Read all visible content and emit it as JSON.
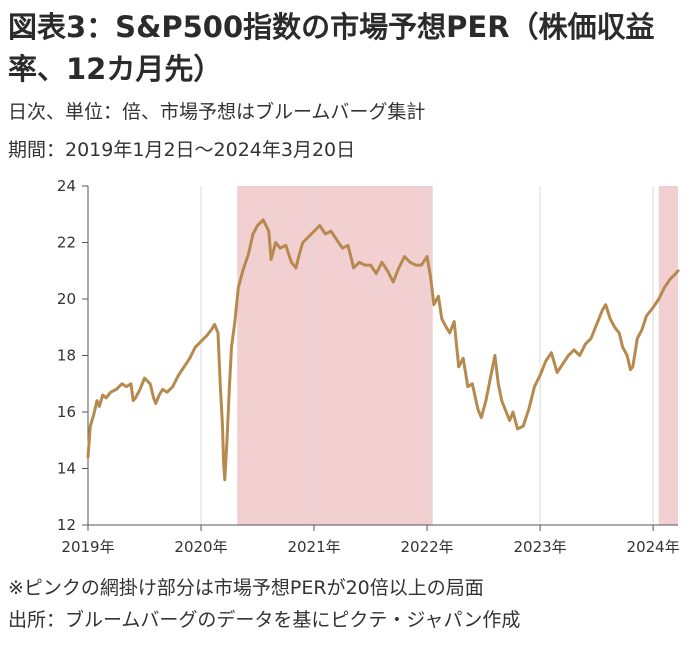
{
  "header": {
    "title": "図表3：S&P500指数の市場予想PER（株価収益率、12カ月先）",
    "subtitle1": "日次、単位：倍、市場予想はブルームバーグ集計",
    "subtitle2": "期間：2019年1月2日～2024年3月20日"
  },
  "footer": {
    "note": "※ピンクの網掛け部分は市場予想PERが20倍以上の局面",
    "source": "出所：ブルームバーグのデータを基にピクテ・ジャパン作成"
  },
  "colors": {
    "line": "#b68a4e",
    "shade": "#f2d0d2",
    "grid": "#d9d9d9"
  },
  "chart_data": {
    "type": "line",
    "title": "",
    "xlabel": "",
    "ylabel": "",
    "ylim": [
      12,
      24
    ],
    "yticks": [
      "12",
      "14",
      "16",
      "18",
      "20",
      "22",
      "24"
    ],
    "xticks": [
      {
        "x": 2019.0,
        "label": "2019年"
      },
      {
        "x": 2020.0,
        "label": "2020年"
      },
      {
        "x": 2021.0,
        "label": "2021年"
      },
      {
        "x": 2022.0,
        "label": "2022年"
      },
      {
        "x": 2023.0,
        "label": "2023年"
      },
      {
        "x": 2024.0,
        "label": "2024年"
      }
    ],
    "xlim": [
      2019.0,
      2024.22
    ],
    "grid": "vertical",
    "shaded_ranges": [
      [
        2020.32,
        2022.05
      ],
      [
        2024.05,
        2024.22
      ]
    ],
    "series": [
      {
        "x": [
          2019.0,
          2019.02,
          2019.05,
          2019.08,
          2019.1,
          2019.13,
          2019.16,
          2019.2,
          2019.25,
          2019.3,
          2019.34,
          2019.38,
          2019.4,
          2019.42,
          2019.46,
          2019.5,
          2019.55,
          2019.58,
          2019.6,
          2019.63,
          2019.66,
          2019.7,
          2019.75,
          2019.8,
          2019.85,
          2019.9,
          2019.95,
          2020.0,
          2020.05,
          2020.09,
          2020.12,
          2020.15,
          2020.17,
          2020.19,
          2020.2,
          2020.21,
          2020.23,
          2020.25,
          2020.27,
          2020.3,
          2020.33,
          2020.37,
          2020.42,
          2020.46,
          2020.5,
          2020.55,
          2020.6,
          2020.62,
          2020.64,
          2020.66,
          2020.7,
          2020.75,
          2020.8,
          2020.84,
          2020.87,
          2020.9,
          2020.95,
          2021.0,
          2021.05,
          2021.1,
          2021.15,
          2021.2,
          2021.25,
          2021.3,
          2021.35,
          2021.4,
          2021.45,
          2021.5,
          2021.55,
          2021.6,
          2021.65,
          2021.7,
          2021.75,
          2021.8,
          2021.85,
          2021.9,
          2021.95,
          2022.0,
          2022.03,
          2022.06,
          2022.1,
          2022.13,
          2022.17,
          2022.2,
          2022.24,
          2022.28,
          2022.32,
          2022.36,
          2022.4,
          2022.45,
          2022.48,
          2022.52,
          2022.57,
          2022.6,
          2022.63,
          2022.66,
          2022.7,
          2022.73,
          2022.76,
          2022.8,
          2022.85,
          2022.9,
          2022.95,
          2023.0,
          2023.05,
          2023.1,
          2023.15,
          2023.2,
          2023.25,
          2023.3,
          2023.35,
          2023.4,
          2023.45,
          2023.5,
          2023.55,
          2023.58,
          2023.62,
          2023.66,
          2023.7,
          2023.73,
          2023.77,
          2023.8,
          2023.82,
          2023.86,
          2023.9,
          2023.94,
          2024.0,
          2024.05,
          2024.1,
          2024.15,
          2024.2,
          2024.22
        ],
        "y": [
          14.4,
          15.5,
          15.9,
          16.4,
          16.2,
          16.6,
          16.5,
          16.7,
          16.8,
          17.0,
          16.9,
          17.0,
          16.4,
          16.5,
          16.8,
          17.2,
          17.0,
          16.5,
          16.3,
          16.6,
          16.8,
          16.7,
          16.9,
          17.3,
          17.6,
          17.9,
          18.3,
          18.5,
          18.7,
          18.9,
          19.1,
          18.8,
          17.0,
          15.5,
          14.2,
          13.6,
          15.0,
          16.8,
          18.3,
          19.2,
          20.4,
          21.0,
          21.6,
          22.3,
          22.6,
          22.8,
          22.4,
          21.4,
          21.7,
          22.0,
          21.8,
          21.9,
          21.3,
          21.1,
          21.6,
          22.0,
          22.2,
          22.4,
          22.6,
          22.3,
          22.4,
          22.1,
          21.8,
          21.9,
          21.1,
          21.3,
          21.2,
          21.2,
          20.9,
          21.3,
          21.0,
          20.6,
          21.1,
          21.5,
          21.3,
          21.2,
          21.2,
          21.5,
          20.8,
          19.8,
          20.1,
          19.3,
          19.0,
          18.8,
          19.2,
          17.6,
          17.9,
          16.9,
          17.0,
          16.1,
          15.8,
          16.4,
          17.4,
          18.0,
          17.0,
          16.4,
          16.0,
          15.7,
          16.0,
          15.4,
          15.5,
          16.1,
          16.9,
          17.3,
          17.8,
          18.1,
          17.4,
          17.7,
          18.0,
          18.2,
          18.0,
          18.4,
          18.6,
          19.1,
          19.6,
          19.8,
          19.3,
          19.0,
          18.8,
          18.3,
          18.0,
          17.5,
          17.6,
          18.6,
          18.9,
          19.4,
          19.7,
          20.0,
          20.4,
          20.7,
          20.9,
          21.0
        ]
      }
    ]
  }
}
